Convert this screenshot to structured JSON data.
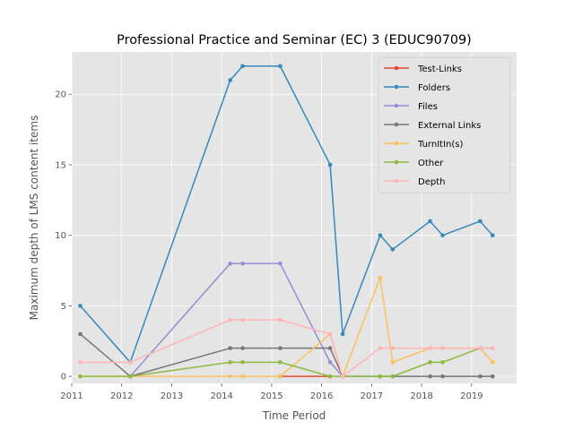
{
  "chart_data": {
    "type": "line",
    "title": "Professional Practice and Seminar (EC) 3 (EDUC90709)",
    "xlabel": "Time Period",
    "ylabel": "Maximum depth of LMS content items",
    "xlim": [
      2011,
      2019.9
    ],
    "ylim": [
      -0.5,
      23
    ],
    "xticks": [
      2011,
      2012,
      2013,
      2014,
      2015,
      2016,
      2017,
      2018,
      2019
    ],
    "xtick_labels": [
      "2011",
      "2012",
      "2013",
      "2014",
      "2015",
      "2016",
      "2017",
      "2018",
      "2019"
    ],
    "yticks": [
      0,
      5,
      10,
      15,
      20
    ],
    "ytick_labels": [
      "0",
      "5",
      "10",
      "15",
      "20"
    ],
    "grid": true,
    "legend_position": "top-right",
    "x": [
      2011.17,
      2012.17,
      2014.17,
      2014.42,
      2015.17,
      2016.17,
      2016.42,
      2017.17,
      2017.42,
      2018.17,
      2018.42,
      2019.17,
      2019.42
    ],
    "series": [
      {
        "name": "Test-Links",
        "color": "#E24A33",
        "x": [
          2015.17,
          2016.17
        ],
        "values": [
          0,
          0
        ]
      },
      {
        "name": "Folders",
        "color": "#348ABD",
        "x": [
          2011.17,
          2012.17,
          2014.17,
          2014.42,
          2015.17,
          2016.17,
          2016.42,
          2017.17,
          2017.42,
          2018.17,
          2018.42,
          2019.17,
          2019.42
        ],
        "values": [
          5,
          1,
          21,
          22,
          22,
          15,
          3,
          10,
          9,
          11,
          10,
          11,
          10
        ]
      },
      {
        "name": "Files",
        "color": "#988ED5",
        "x": [
          2012.17,
          2014.17,
          2014.42,
          2015.17,
          2016.17,
          2016.42
        ],
        "values": [
          0,
          8,
          8,
          8,
          1,
          0
        ]
      },
      {
        "name": "External Links",
        "color": "#777777",
        "x": [
          2011.17,
          2012.17,
          2014.17,
          2014.42,
          2015.17,
          2016.17,
          2016.42,
          2017.17,
          2017.42,
          2018.17,
          2018.42,
          2019.17,
          2019.42
        ],
        "values": [
          3,
          0,
          2,
          2,
          2,
          2,
          0,
          0,
          0,
          0,
          0,
          0,
          0
        ]
      },
      {
        "name": "TurnItIn(s)",
        "color": "#FBC15E",
        "x": [
          2011.17,
          2012.17,
          2014.17,
          2014.42,
          2015.17,
          2016.17,
          2016.42,
          2017.17,
          2017.42,
          2018.17,
          2018.42,
          2019.17,
          2019.42
        ],
        "values": [
          0,
          0,
          0,
          0,
          0,
          3,
          0,
          7,
          1,
          2,
          2,
          2,
          1
        ]
      },
      {
        "name": "Other",
        "color": "#8EBA42",
        "x": [
          2011.17,
          2012.17,
          2014.17,
          2014.42,
          2015.17,
          2016.17,
          2016.42,
          2017.17,
          2017.42,
          2018.17,
          2018.42,
          2019.17,
          2019.42
        ],
        "values": [
          0,
          0,
          1,
          1,
          1,
          0,
          0,
          0,
          0,
          1,
          1,
          2,
          2
        ]
      },
      {
        "name": "Depth",
        "color": "#FFB5B8",
        "x": [
          2011.17,
          2012.17,
          2014.17,
          2014.42,
          2015.17,
          2016.17,
          2016.42,
          2017.17,
          2017.42,
          2018.17,
          2018.42,
          2019.17,
          2019.42
        ],
        "values": [
          1,
          1,
          4,
          4,
          4,
          3,
          0,
          2,
          2,
          2,
          2,
          2,
          2
        ]
      }
    ]
  }
}
